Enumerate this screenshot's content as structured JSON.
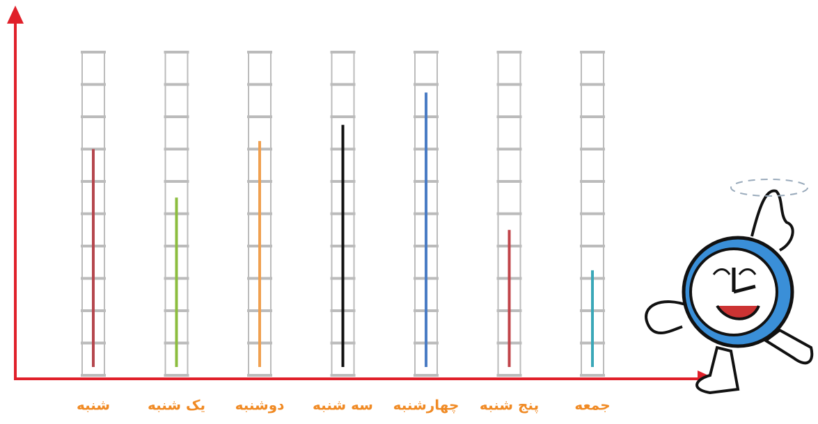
{
  "chart_data": {
    "type": "bar",
    "categories": [
      "شنبه",
      "یک شنبه",
      "دوشنبه",
      "سه شنبه",
      "چهارشنبه",
      "پنج شنبه",
      "جمعه"
    ],
    "values": [
      7,
      5.5,
      7.25,
      7.75,
      8.75,
      4.5,
      3.25
    ],
    "colors": [
      "#b5474e",
      "#8cbd3f",
      "#f0a050",
      "#111111",
      "#4a7cc4",
      "#c0444a",
      "#3aa7b8"
    ],
    "ylim": [
      0,
      10
    ],
    "yticks": [
      0,
      1,
      2,
      3,
      4,
      5,
      6,
      7,
      8,
      9,
      10
    ],
    "grid": true
  }
}
